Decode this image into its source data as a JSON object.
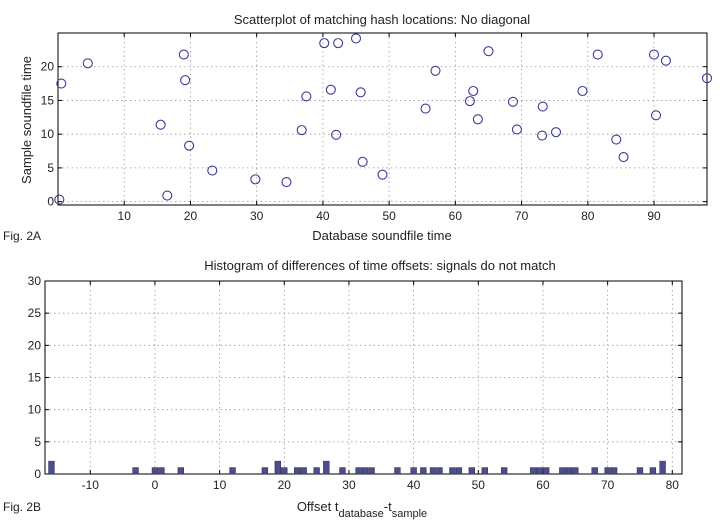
{
  "chart_data": [
    {
      "type": "scatter",
      "figure_label": "Fig. 2A",
      "title": "Scatterplot of matching hash locations:  No diagonal",
      "xlabel": "Database soundfile time",
      "ylabel": "Sample soundfile time",
      "xlim": [
        0,
        98
      ],
      "ylim": [
        -0.5,
        25
      ],
      "xticks": [
        10,
        20,
        30,
        40,
        50,
        60,
        70,
        80,
        90
      ],
      "yticks": [
        0,
        5,
        10,
        15,
        20
      ],
      "grid": true,
      "points": [
        [
          0.2,
          0.3
        ],
        [
          0.5,
          17.5
        ],
        [
          4.5,
          20.5
        ],
        [
          15.5,
          11.4
        ],
        [
          16.5,
          0.9
        ],
        [
          19,
          21.8
        ],
        [
          19.2,
          18
        ],
        [
          19.8,
          8.3
        ],
        [
          23.3,
          4.6
        ],
        [
          29.8,
          3.3
        ],
        [
          34.5,
          2.9
        ],
        [
          36.8,
          10.6
        ],
        [
          37.5,
          15.6
        ],
        [
          40.2,
          23.5
        ],
        [
          41.2,
          16.6
        ],
        [
          42,
          9.9
        ],
        [
          42.3,
          23.5
        ],
        [
          45,
          24.2
        ],
        [
          45.7,
          16.2
        ],
        [
          46,
          5.9
        ],
        [
          49,
          4
        ],
        [
          55.5,
          13.8
        ],
        [
          57,
          19.4
        ],
        [
          62.2,
          14.9
        ],
        [
          62.7,
          16.4
        ],
        [
          63.4,
          12.2
        ],
        [
          65,
          22.3
        ],
        [
          68.7,
          14.8
        ],
        [
          69.3,
          10.7
        ],
        [
          73.1,
          9.8
        ],
        [
          73.2,
          14.1
        ],
        [
          75.2,
          10.3
        ],
        [
          79.2,
          16.4
        ],
        [
          81.5,
          21.8
        ],
        [
          84.3,
          9.2
        ],
        [
          85.4,
          6.6
        ],
        [
          90,
          21.8
        ],
        [
          90.3,
          12.8
        ],
        [
          91.8,
          20.9
        ],
        [
          98,
          18.3
        ]
      ]
    },
    {
      "type": "bar",
      "figure_label": "Fig. 2B",
      "title": "Histogram of differences of time offsets: signals do not match",
      "xlabel_main": "Offset t",
      "xlabel_sub1": "database",
      "xlabel_mid": "-t",
      "xlabel_sub2": "sample",
      "xlim": [
        -17,
        81.5
      ],
      "ylim": [
        0,
        30
      ],
      "xticks": [
        -10,
        0,
        10,
        20,
        30,
        40,
        50,
        60,
        70,
        80
      ],
      "yticks": [
        0,
        5,
        10,
        15,
        20,
        25,
        30
      ],
      "grid": true,
      "bins": [
        [
          -16,
          2
        ],
        [
          -3,
          1
        ],
        [
          0,
          1
        ],
        [
          1,
          1
        ],
        [
          4,
          1
        ],
        [
          12,
          1
        ],
        [
          17,
          1
        ],
        [
          19,
          2
        ],
        [
          20,
          1
        ],
        [
          22,
          1
        ],
        [
          23,
          1
        ],
        [
          25,
          1
        ],
        [
          26.5,
          2
        ],
        [
          29,
          1
        ],
        [
          31.5,
          1
        ],
        [
          32.5,
          1
        ],
        [
          33.5,
          1
        ],
        [
          37.5,
          1
        ],
        [
          40,
          1
        ],
        [
          41.5,
          1
        ],
        [
          43,
          1
        ],
        [
          44,
          1
        ],
        [
          46,
          1
        ],
        [
          47,
          1
        ],
        [
          49,
          1
        ],
        [
          51,
          1
        ],
        [
          54,
          1
        ],
        [
          58.5,
          1
        ],
        [
          59.5,
          1
        ],
        [
          60.5,
          1
        ],
        [
          63,
          1
        ],
        [
          64,
          1
        ],
        [
          65,
          1
        ],
        [
          68,
          1
        ],
        [
          70,
          1
        ],
        [
          71,
          1
        ],
        [
          75,
          1
        ],
        [
          77,
          1
        ],
        [
          78.5,
          2
        ]
      ]
    }
  ]
}
